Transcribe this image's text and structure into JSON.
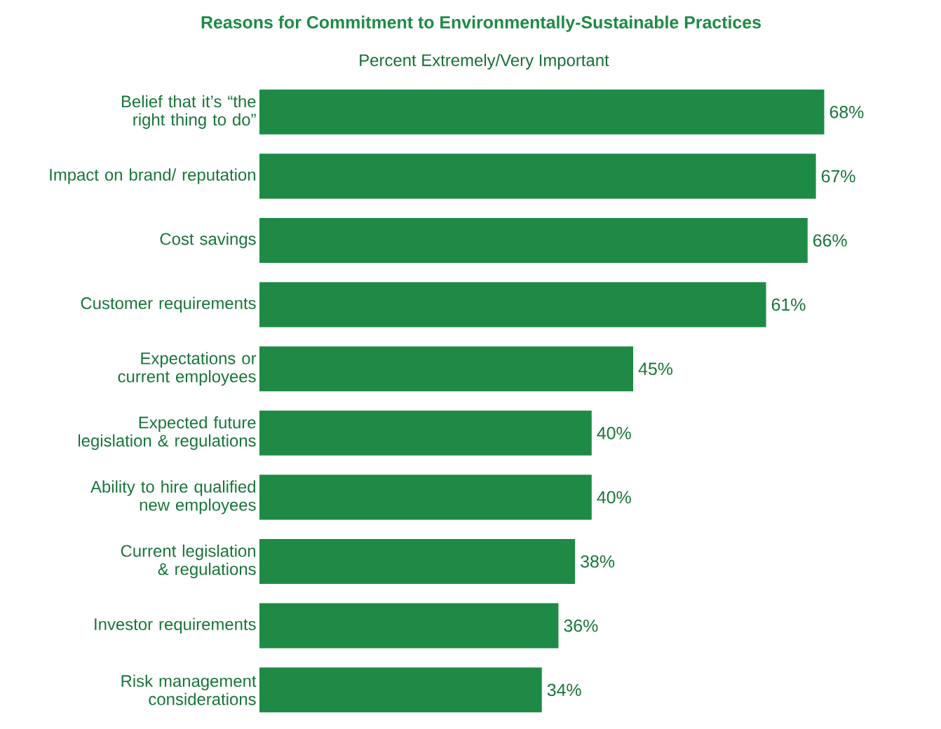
{
  "chart_data": {
    "type": "bar",
    "orientation": "horizontal",
    "title": "Reasons for Commitment to Environmentally-Sustainable Practices",
    "subtitle": "Percent Extremely/Very Important",
    "categories": [
      "Belief that it’s “the right thing to do”",
      "Impact on brand/ reputation",
      "Cost savings",
      "Customer requirements",
      "Expectations or current employees",
      "Expected future legislation & regulations",
      "Ability to hire qualified new employees",
      "Current legislation & regulations",
      "Investor requirements",
      "Risk management considerations"
    ],
    "values": [
      68,
      67,
      66,
      61,
      45,
      40,
      40,
      38,
      36,
      34
    ],
    "value_labels": [
      "68%",
      "67%",
      "66%",
      "61%",
      "45%",
      "40%",
      "40%",
      "38%",
      "36%",
      "34%"
    ],
    "color": "#1e8a45"
  }
}
